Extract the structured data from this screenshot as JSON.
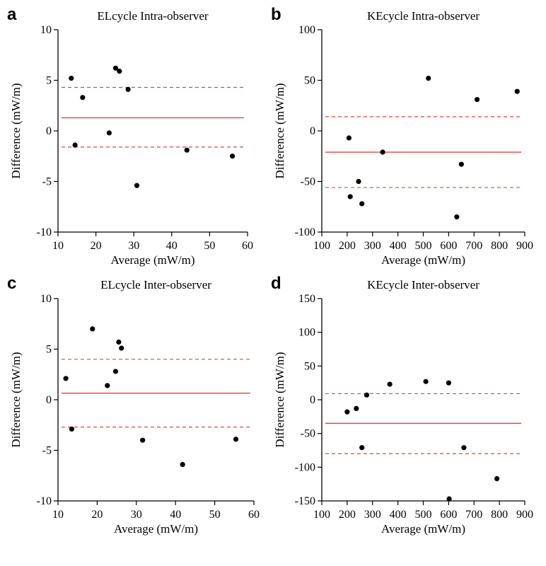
{
  "chart_data": [
    {
      "type": "scatter",
      "panel_label": "a",
      "title": "ELcycle Intra-observer",
      "xlabel": "Average (mW/m)",
      "ylabel": "Difference (mW/m)",
      "xlim": [
        10,
        60
      ],
      "ylim": [
        -10,
        10
      ],
      "xticks": [
        10,
        20,
        30,
        40,
        50,
        60
      ],
      "yticks": [
        -10,
        -5,
        0,
        5,
        10
      ],
      "x": [
        13.5,
        14.5,
        16.5,
        23.5,
        25.2,
        26.2,
        28.5,
        30.8,
        44,
        56
      ],
      "y": [
        5.2,
        -1.4,
        3.3,
        -0.2,
        6.2,
        5.9,
        4.1,
        -5.4,
        -1.9,
        -2.5
      ],
      "mean_line": 1.3,
      "upper_limit": 4.3,
      "lower_limit": -1.6,
      "grid": false
    },
    {
      "type": "scatter",
      "panel_label": "b",
      "title": "KEcycle Intra-observer",
      "xlabel": "Average (mW/m)",
      "ylabel": "Difference (mW/m)",
      "xlim": [
        100,
        900
      ],
      "ylim": [
        -100,
        100
      ],
      "xticks": [
        100,
        200,
        300,
        400,
        500,
        600,
        700,
        800,
        900
      ],
      "yticks": [
        -100,
        -50,
        0,
        50,
        100
      ],
      "x": [
        207,
        212,
        245,
        258,
        340,
        520,
        632,
        650,
        712,
        870
      ],
      "y": [
        -7,
        -65,
        -50,
        -72,
        -21,
        52,
        -85,
        -33,
        31,
        39
      ],
      "mean_line": -21,
      "upper_limit": 14,
      "lower_limit": -56,
      "grid": false
    },
    {
      "type": "scatter",
      "panel_label": "c",
      "title": "ELcycle Inter-observer",
      "xlabel": "Average (mW/m)",
      "ylabel": "Difference (mW/m)",
      "xlim": [
        10,
        60
      ],
      "ylim": [
        -10,
        10
      ],
      "xticks": [
        10,
        20,
        30,
        40,
        50,
        60
      ],
      "yticks": [
        -10,
        -5,
        0,
        5,
        10
      ],
      "x": [
        12,
        13.5,
        18.8,
        22.6,
        24.7,
        25.5,
        26.2,
        31.6,
        41.8,
        55.4
      ],
      "y": [
        2.1,
        -2.9,
        7,
        1.4,
        2.8,
        5.7,
        5.1,
        -4,
        -6.4,
        -3.9
      ],
      "mean_line": 0.65,
      "upper_limit": 4,
      "lower_limit": -2.7,
      "grid": false
    },
    {
      "type": "scatter",
      "panel_label": "d",
      "title": "KEcycle Inter-observer",
      "xlabel": "Average (mW/m)",
      "ylabel": "Difference (mW/m)",
      "xlim": [
        100,
        900
      ],
      "ylim": [
        -150,
        150
      ],
      "xticks": [
        100,
        200,
        300,
        400,
        500,
        600,
        700,
        800,
        900
      ],
      "yticks": [
        -150,
        -100,
        -50,
        0,
        50,
        100,
        150
      ],
      "x": [
        200,
        236,
        258,
        277,
        368,
        510,
        600,
        602,
        660,
        790
      ],
      "y": [
        -18,
        -13,
        -71,
        7,
        23,
        27,
        25,
        -147,
        -71,
        -117
      ],
      "mean_line": -35,
      "upper_limit": 9,
      "lower_limit": -80,
      "grid": false
    }
  ],
  "colors": {
    "points": "#000000",
    "mean_line": "#e2453a",
    "limit_lines": "#e2453a",
    "axes": "#000000"
  }
}
